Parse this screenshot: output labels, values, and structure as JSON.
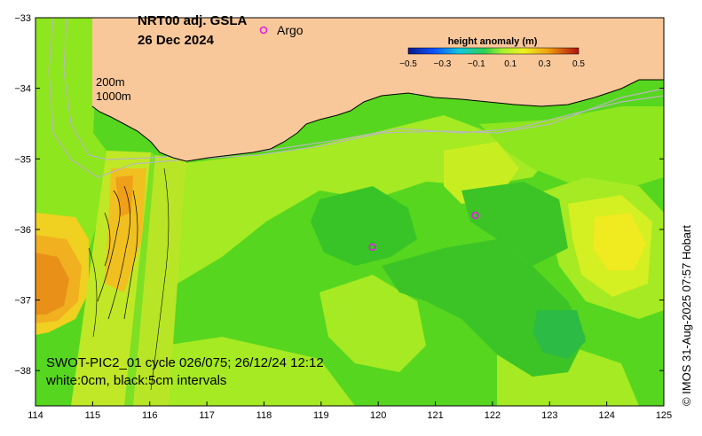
{
  "title_line1": "NRT00 adj. GSLA",
  "title_line2": "26 Dec 2024",
  "legend_label": "Argo",
  "isobath_labels": [
    "200m",
    "1000m"
  ],
  "colorbar": {
    "title": "height anomaly (m)",
    "ticks": [
      "−0.5",
      "−0.3",
      "−0.1",
      "0.1",
      "0.3",
      "0.5"
    ]
  },
  "swot_note_line1": "SWOT-PIC2_01 cycle 026/075; 26/12/24 12:12",
  "swot_note_line2": "white:0cm, black:5cm intervals",
  "credit": "© IMOS 31-Aug-2025 07:57 Hobart",
  "colors": {
    "land": "#f9c89a",
    "ocean_base": "#55d81f",
    "argo_marker": "#e020e0"
  },
  "map_data": {
    "x_axis": {
      "ticks": [
        "114",
        "115",
        "116",
        "117",
        "118",
        "119",
        "120",
        "121",
        "122",
        "123",
        "124",
        "125"
      ]
    },
    "y_axis": {
      "ticks": [
        "−33",
        "−34",
        "−35",
        "−36",
        "−37",
        "−38"
      ]
    },
    "argo_floats": [
      {
        "lon": 119.9,
        "lat": -36.25
      },
      {
        "lon": 121.7,
        "lat": -35.8
      }
    ]
  }
}
